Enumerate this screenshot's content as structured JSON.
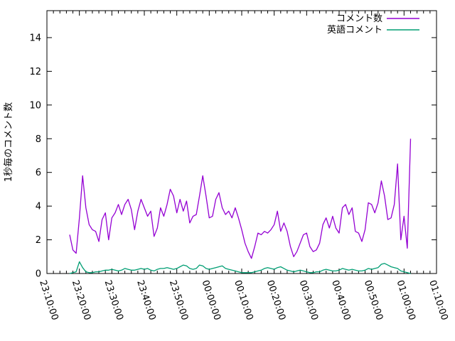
{
  "window": {
    "background": "#ffffff",
    "border_color": "#000000"
  },
  "chart_data": {
    "type": "line",
    "title": "",
    "xlabel": "",
    "ylabel": "1秒毎のコメント数",
    "ylim": [
      0,
      15.6
    ],
    "yticks": [
      0,
      2,
      4,
      6,
      8,
      10,
      12,
      14
    ],
    "x_axis_start": "23:10:00",
    "x_axis_end": "01:10:00",
    "x_major_ticks": [
      "23:10:00",
      "23:20:00",
      "23:30:00",
      "23:40:00",
      "23:50:00",
      "00:00:00",
      "00:10:00",
      "00:20:00",
      "00:30:00",
      "00:40:00",
      "00:50:00",
      "01:00:00",
      "01:10:00"
    ],
    "x_minor_tick_minutes": 2,
    "grid": false,
    "legend_position": "top-right-inside",
    "x": [
      "23:17:00",
      "23:18:00",
      "23:19:00",
      "23:20:00",
      "23:21:00",
      "23:22:00",
      "23:23:00",
      "23:24:00",
      "23:25:00",
      "23:26:00",
      "23:27:00",
      "23:28:00",
      "23:29:00",
      "23:30:00",
      "23:31:00",
      "23:32:00",
      "23:33:00",
      "23:34:00",
      "23:35:00",
      "23:36:00",
      "23:37:00",
      "23:38:00",
      "23:39:00",
      "23:40:00",
      "23:41:00",
      "23:42:00",
      "23:43:00",
      "23:44:00",
      "23:45:00",
      "23:46:00",
      "23:47:00",
      "23:48:00",
      "23:49:00",
      "23:50:00",
      "23:51:00",
      "23:52:00",
      "23:53:00",
      "23:54:00",
      "23:55:00",
      "23:56:00",
      "23:57:00",
      "23:58:00",
      "23:59:00",
      "00:00:00",
      "00:01:00",
      "00:02:00",
      "00:03:00",
      "00:04:00",
      "00:05:00",
      "00:06:00",
      "00:07:00",
      "00:08:00",
      "00:09:00",
      "00:10:00",
      "00:11:00",
      "00:12:00",
      "00:13:00",
      "00:14:00",
      "00:15:00",
      "00:16:00",
      "00:17:00",
      "00:18:00",
      "00:19:00",
      "00:20:00",
      "00:21:00",
      "00:22:00",
      "00:23:00",
      "00:24:00",
      "00:25:00",
      "00:26:00",
      "00:27:00",
      "00:28:00",
      "00:29:00",
      "00:30:00",
      "00:31:00",
      "00:32:00",
      "00:33:00",
      "00:34:00",
      "00:35:00",
      "00:36:00",
      "00:37:00",
      "00:38:00",
      "00:39:00",
      "00:40:00",
      "00:41:00",
      "00:42:00",
      "00:43:00",
      "00:44:00",
      "00:45:00",
      "00:46:00",
      "00:47:00",
      "00:48:00",
      "00:49:00",
      "00:50:00",
      "00:51:00",
      "00:52:00",
      "00:53:00",
      "00:54:00",
      "00:55:00",
      "00:56:00",
      "00:57:00",
      "00:58:00",
      "00:59:00",
      "01:00:00",
      "01:01:00",
      "01:02:00"
    ],
    "series": [
      {
        "name": "コメント数",
        "color": "#9400d3",
        "values": [
          2.3,
          1.4,
          1.2,
          3.3,
          5.8,
          3.9,
          2.9,
          2.6,
          2.5,
          1.9,
          3.2,
          3.6,
          2.0,
          3.3,
          3.6,
          4.1,
          3.5,
          4.1,
          4.4,
          3.8,
          2.6,
          3.7,
          4.4,
          3.9,
          3.4,
          3.7,
          2.2,
          2.7,
          3.9,
          3.4,
          4.1,
          5.0,
          4.6,
          3.6,
          4.4,
          3.7,
          4.3,
          3.0,
          3.4,
          3.5,
          4.6,
          5.8,
          4.6,
          3.3,
          3.4,
          4.4,
          4.8,
          3.9,
          3.5,
          3.7,
          3.3,
          3.9,
          3.3,
          2.6,
          1.8,
          1.3,
          0.9,
          1.6,
          2.4,
          2.3,
          2.5,
          2.4,
          2.6,
          2.9,
          3.7,
          2.5,
          3.0,
          2.5,
          1.6,
          1.0,
          1.3,
          1.8,
          2.3,
          2.4,
          1.6,
          1.3,
          1.4,
          1.8,
          2.9,
          3.3,
          2.7,
          3.4,
          2.7,
          2.4,
          3.9,
          4.1,
          3.5,
          3.9,
          2.5,
          2.4,
          1.9,
          2.6,
          4.2,
          4.1,
          3.6,
          4.2,
          5.5,
          4.6,
          3.2,
          3.3,
          4.1,
          6.5,
          2.0,
          3.4,
          1.5,
          8.0
        ]
      },
      {
        "name": "英語コメント",
        "color": "#009e73",
        "values": [
          0,
          0.05,
          0.1,
          0.7,
          0.35,
          0.1,
          0.05,
          0.05,
          0.1,
          0.1,
          0.15,
          0.2,
          0.2,
          0.25,
          0.2,
          0.15,
          0.2,
          0.3,
          0.25,
          0.2,
          0.2,
          0.25,
          0.3,
          0.25,
          0.3,
          0.2,
          0.15,
          0.25,
          0.3,
          0.3,
          0.35,
          0.3,
          0.25,
          0.3,
          0.4,
          0.5,
          0.45,
          0.3,
          0.25,
          0.3,
          0.5,
          0.45,
          0.3,
          0.25,
          0.3,
          0.35,
          0.4,
          0.45,
          0.3,
          0.25,
          0.2,
          0.15,
          0.1,
          0.05,
          0.05,
          0.05,
          0.05,
          0.1,
          0.15,
          0.2,
          0.3,
          0.35,
          0.3,
          0.25,
          0.35,
          0.4,
          0.3,
          0.2,
          0.15,
          0.1,
          0.15,
          0.2,
          0.15,
          0.1,
          0.05,
          0.05,
          0.1,
          0.1,
          0.2,
          0.25,
          0.2,
          0.15,
          0.15,
          0.2,
          0.3,
          0.25,
          0.2,
          0.25,
          0.2,
          0.15,
          0.15,
          0.2,
          0.3,
          0.25,
          0.3,
          0.35,
          0.55,
          0.6,
          0.5,
          0.4,
          0.35,
          0.3,
          0.15,
          0.1,
          0.05,
          0
        ]
      }
    ]
  }
}
